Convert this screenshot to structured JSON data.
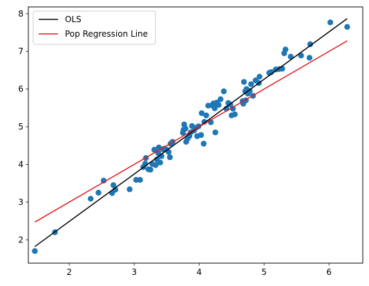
{
  "chart_data": {
    "type": "scatter",
    "title": "",
    "xlabel": "",
    "ylabel": "",
    "xlim": [
      1.37,
      6.52
    ],
    "ylim": [
      1.38,
      8.18
    ],
    "xticks": [
      2,
      3,
      4,
      5,
      6
    ],
    "yticks": [
      2,
      3,
      4,
      5,
      6,
      7,
      8
    ],
    "grid": false,
    "legend": {
      "placement": "top-left",
      "entries": [
        {
          "label": "OLS",
          "color": "#000000",
          "kind": "line"
        },
        {
          "label": "Pop Regression Line",
          "color": "#e41a1c",
          "kind": "line"
        }
      ]
    },
    "series": [
      {
        "kind": "scatter",
        "color": "#1f77b4",
        "points": [
          [
            1.47,
            1.7
          ],
          [
            1.78,
            2.2
          ],
          [
            2.33,
            3.09
          ],
          [
            2.45,
            3.25
          ],
          [
            2.53,
            3.57
          ],
          [
            2.66,
            3.24
          ],
          [
            2.68,
            3.45
          ],
          [
            2.71,
            3.33
          ],
          [
            2.93,
            3.34
          ],
          [
            3.03,
            3.59
          ],
          [
            3.09,
            3.59
          ],
          [
            3.14,
            3.93
          ],
          [
            3.17,
            4.02
          ],
          [
            3.18,
            4.17
          ],
          [
            3.22,
            3.87
          ],
          [
            3.25,
            3.86
          ],
          [
            3.28,
            4.01
          ],
          [
            3.31,
            4.39
          ],
          [
            3.33,
            3.98
          ],
          [
            3.35,
            4.13
          ],
          [
            3.37,
            4.3
          ],
          [
            3.38,
            4.45
          ],
          [
            3.4,
            4.05
          ],
          [
            3.42,
            4.22
          ],
          [
            3.44,
            4.4
          ],
          [
            3.47,
            4.42
          ],
          [
            3.5,
            4.39
          ],
          [
            3.53,
            4.33
          ],
          [
            3.55,
            4.19
          ],
          [
            3.56,
            4.55
          ],
          [
            3.59,
            4.6
          ],
          [
            3.75,
            4.84
          ],
          [
            3.76,
            4.92
          ],
          [
            3.77,
            5.06
          ],
          [
            3.79,
            4.95
          ],
          [
            3.8,
            4.6
          ],
          [
            3.82,
            4.68
          ],
          [
            3.85,
            4.75
          ],
          [
            3.87,
            4.85
          ],
          [
            3.89,
            5.02
          ],
          [
            3.92,
            4.9
          ],
          [
            3.95,
            4.97
          ],
          [
            3.97,
            4.75
          ],
          [
            3.99,
            5.01
          ],
          [
            4.03,
            4.78
          ],
          [
            4.04,
            5.36
          ],
          [
            4.07,
            4.55
          ],
          [
            4.08,
            5.13
          ],
          [
            4.11,
            5.3
          ],
          [
            4.14,
            5.56
          ],
          [
            4.18,
            5.12
          ],
          [
            4.2,
            5.57
          ],
          [
            4.22,
            5.62
          ],
          [
            4.24,
            5.49
          ],
          [
            4.25,
            4.85
          ],
          [
            4.27,
            5.64
          ],
          [
            4.3,
            5.58
          ],
          [
            4.33,
            5.73
          ],
          [
            4.38,
            5.94
          ],
          [
            4.42,
            5.48
          ],
          [
            4.45,
            5.63
          ],
          [
            4.48,
            5.59
          ],
          [
            4.5,
            5.3
          ],
          [
            4.52,
            5.48
          ],
          [
            4.55,
            5.33
          ],
          [
            4.67,
            5.68
          ],
          [
            4.68,
            5.61
          ],
          [
            4.69,
            6.19
          ],
          [
            4.71,
            5.94
          ],
          [
            4.72,
            5.7
          ],
          [
            4.73,
            6.0
          ],
          [
            4.75,
            5.88
          ],
          [
            4.78,
            5.95
          ],
          [
            4.8,
            6.13
          ],
          [
            4.83,
            5.82
          ],
          [
            4.87,
            6.23
          ],
          [
            4.92,
            6.16
          ],
          [
            4.93,
            6.33
          ],
          [
            5.08,
            6.43
          ],
          [
            5.11,
            6.45
          ],
          [
            5.18,
            6.52
          ],
          [
            5.23,
            6.53
          ],
          [
            5.28,
            6.54
          ],
          [
            5.31,
            6.95
          ],
          [
            5.33,
            7.05
          ],
          [
            5.41,
            6.86
          ],
          [
            5.57,
            6.89
          ],
          [
            5.7,
            6.83
          ],
          [
            5.71,
            7.19
          ],
          [
            6.02,
            7.77
          ],
          [
            6.28,
            7.65
          ]
        ]
      },
      {
        "kind": "line",
        "name": "OLS",
        "color": "#000000",
        "points": [
          [
            1.47,
            1.82
          ],
          [
            6.28,
            7.87
          ]
        ]
      },
      {
        "kind": "line",
        "name": "Pop Regression Line",
        "color": "#e41a1c",
        "points": [
          [
            1.47,
            2.47
          ],
          [
            6.28,
            7.28
          ]
        ]
      }
    ]
  }
}
